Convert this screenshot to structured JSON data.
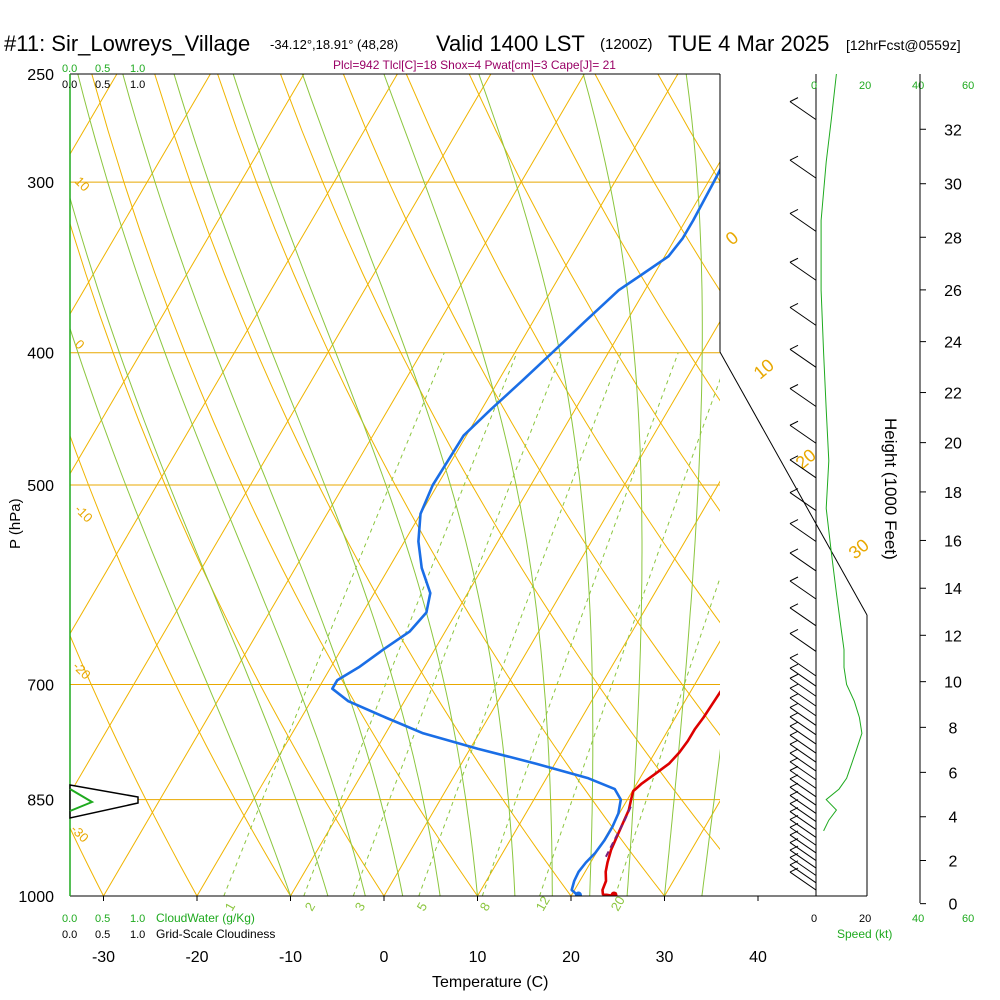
{
  "header": {
    "station": "#11: Sir_Lowreys_Village",
    "coords": "-34.12°,18.91° (48,28)",
    "valid": "Valid 1400 LST",
    "utc": "(1200Z)",
    "date": "TUE 4 Mar 2025",
    "forecast": "[12hrFcst@0559z]",
    "indices": "Plcl=942 Tlcl[C]=18 Shox=4 Pwat[cm]=3 Cape[J]= 21"
  },
  "scales": {
    "cloud_top_green": [
      "0.0",
      "0.5",
      "1.0"
    ],
    "cloud_top_black": [
      "0.0",
      "0.5",
      "1.0"
    ],
    "cloud_bottom_green": [
      "0.0",
      "0.5",
      "1.0"
    ],
    "cloud_bottom_black": [
      "0.0",
      "0.5",
      "1.0"
    ],
    "cloudwater_label": "CloudWater (g/Kg)",
    "cloudiness_label": "Grid-Scale Cloudiness",
    "speed_top_green": [
      "0",
      "20",
      "40",
      "60"
    ],
    "speed_bottom_black": [
      "0",
      "20",
      "40",
      "60"
    ],
    "speed_label": "Speed (kt)"
  },
  "chart_data": {
    "type": "line",
    "title": "#11: Sir_Lowreys_Village Valid 1400 LST (1200Z) TUE 4 Mar 2025",
    "xlabel": "Temperature (C)",
    "ylabel": "P (hPa)",
    "y2label": "Height (1000 Feet)",
    "x_ticks": [
      "-30",
      "-20",
      "-10",
      "0",
      "10",
      "20",
      "30",
      "40"
    ],
    "x_tick_values": [
      -30,
      -20,
      -10,
      0,
      10,
      20,
      30,
      40
    ],
    "y_ticks": [
      "250",
      "300",
      "400",
      "500",
      "700",
      "850",
      "1000"
    ],
    "y_tick_values": [
      250,
      300,
      400,
      500,
      700,
      850,
      1000
    ],
    "height_ticks": [
      "0",
      "2",
      "4",
      "6",
      "8",
      "10",
      "12",
      "14",
      "16",
      "18",
      "20",
      "22",
      "24",
      "26",
      "28",
      "30",
      "32"
    ],
    "isotherm_labels": [
      "0",
      "10",
      "20",
      "30"
    ],
    "left_isotherm_labels": [
      "10",
      "0",
      "-10",
      "-20",
      "-30"
    ],
    "mixing_ratio_labels": [
      "1",
      "2",
      "3",
      "5",
      "8",
      "12",
      "20"
    ],
    "xlim": [
      -33,
      36
    ],
    "ylim": [
      1000,
      250
    ],
    "series": [
      {
        "name": "Temperature",
        "color": "#dd0000",
        "pressure": [
          1000,
          997,
          990,
          975,
          960,
          945,
          925,
          905,
          885,
          865,
          850,
          838,
          828,
          815,
          800,
          785,
          770,
          755,
          740,
          725,
          710,
          695,
          680,
          660,
          640,
          620,
          600,
          580,
          560,
          540,
          520,
          500,
          480,
          460,
          440,
          430,
          420,
          410,
          400,
          380,
          360,
          340,
          320,
          300,
          280,
          270,
          265
        ],
        "values": [
          24.6,
          23.3,
          23.0,
          22.8,
          22.2,
          21.8,
          21.4,
          21.2,
          21.0,
          20.8,
          20.4,
          20.1,
          20.5,
          21.3,
          22.2,
          22.6,
          22.8,
          22.8,
          23.0,
          23.1,
          23.2,
          23.3,
          22.9,
          22.2,
          21.4,
          20.7,
          19.9,
          19.1,
          18.2,
          17.5,
          16.8,
          16.0,
          15.4,
          14.8,
          14.3,
          14.1,
          13.6,
          12.9,
          12.3,
          10.9,
          9.6,
          8.3,
          6.9,
          5.3,
          4.0,
          3.8,
          3.5
        ]
      },
      {
        "name": "Dewpoint",
        "color": "#1a6ee6",
        "pressure": [
          1000,
          990,
          975,
          960,
          945,
          930,
          910,
          890,
          870,
          850,
          835,
          820,
          800,
          780,
          760,
          740,
          720,
          705,
          695,
          680,
          660,
          640,
          620,
          600,
          575,
          550,
          525,
          500,
          480,
          460,
          440,
          420,
          400,
          380,
          360,
          350,
          340,
          330,
          320,
          300,
          280,
          270,
          265
        ],
        "values": [
          20.8,
          19.7,
          19.4,
          19.3,
          19.5,
          19.9,
          20.1,
          20.1,
          19.9,
          19.3,
          18.0,
          14.5,
          8.0,
          0.8,
          -6.0,
          -11.0,
          -16.0,
          -18.5,
          -18.5,
          -17.0,
          -15.5,
          -13.8,
          -13.2,
          -14.0,
          -16.5,
          -18.5,
          -20.0,
          -20.5,
          -20.4,
          -20.3,
          -19.0,
          -17.5,
          -16.0,
          -14.5,
          -12.8,
          -11.2,
          -9.6,
          -9.2,
          -9.2,
          -9.4,
          -9.7,
          -10.0,
          -10.4
        ]
      },
      {
        "name": "Parcel",
        "color": "#7a1f7a",
        "pressure": [
          860,
          880,
          900,
          920,
          940
        ],
        "values": [
          20.8,
          21.0,
          21.1,
          21.2,
          21.3
        ]
      }
    ],
    "wind_barbs": "right panel, light winds",
    "grid": true
  }
}
